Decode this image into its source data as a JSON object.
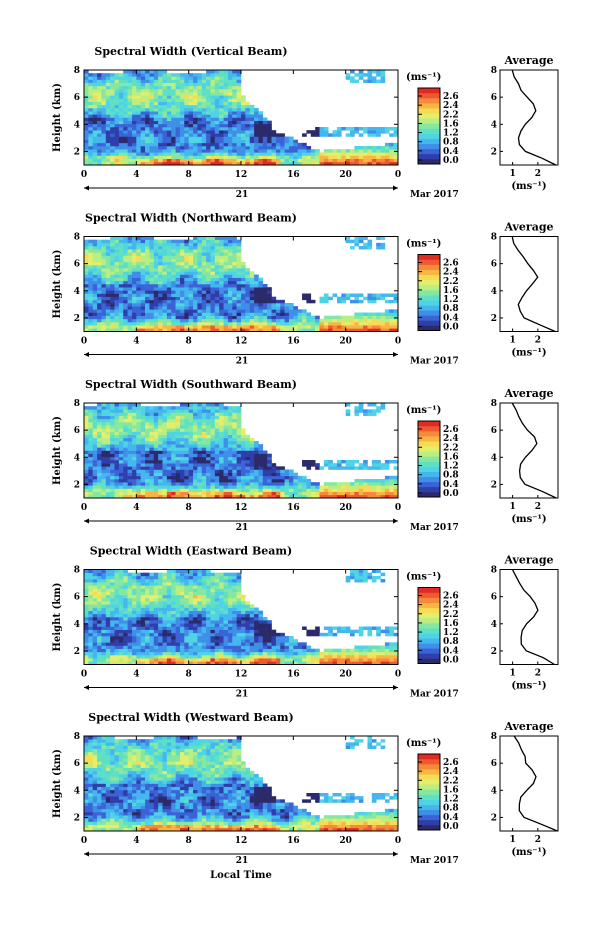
{
  "figure": {
    "bottom_xlabel": "Local Time",
    "date_day": "21",
    "date_month": "Mar 2017"
  },
  "colorscale": {
    "unit": "(ms⁻¹)",
    "ticks": [
      "2.6",
      "2.4",
      "2.2",
      "1.6",
      "1.2",
      "0.8",
      "0.4",
      "0.0"
    ],
    "colors": [
      "#2b2b6b",
      "#2f3ea8",
      "#3a63d6",
      "#3f8fe8",
      "#45b7ef",
      "#4fd4e6",
      "#5fe0c4",
      "#86e8a0",
      "#b8ee82",
      "#e2ee6c",
      "#f6dc55",
      "#f8b544",
      "#f58a3a",
      "#ee5a30",
      "#e22a22"
    ]
  },
  "chart_data": [
    {
      "type": "heatmap",
      "title": "Spectral Width (Vertical Beam)",
      "ylabel": "Height (km)",
      "xlim": [
        0,
        24
      ],
      "ylim": [
        1,
        8
      ],
      "x_ticks": [
        "0",
        "4",
        "8",
        "12",
        "16",
        "20",
        "0"
      ],
      "y_ticks": [
        "2",
        "4",
        "6",
        "8"
      ],
      "value_unit": "ms⁻¹",
      "clim": [
        0.0,
        2.8
      ],
      "average_profile": {
        "title": "Average",
        "xlabel": "(ms⁻¹)",
        "x_ticks": [
          "1",
          "2"
        ],
        "y_ticks": [
          "2",
          "4",
          "6",
          "8"
        ],
        "xlim": [
          0.5,
          2.8
        ],
        "ylim": [
          1,
          8
        ],
        "height_km": [
          1.0,
          1.5,
          2.0,
          2.5,
          3.0,
          3.5,
          4.0,
          4.5,
          5.0,
          5.5,
          6.0,
          6.5,
          7.0,
          7.5,
          8.0
        ],
        "width_ms": [
          2.75,
          2.2,
          1.5,
          1.3,
          1.22,
          1.3,
          1.5,
          1.75,
          1.95,
          1.8,
          1.55,
          1.35,
          1.2,
          1.1,
          1.0
        ]
      }
    },
    {
      "type": "heatmap",
      "title": "Spectral Width (Northward Beam)",
      "ylabel": "Height (km)",
      "xlim": [
        0,
        24
      ],
      "ylim": [
        1,
        8
      ],
      "x_ticks": [
        "0",
        "4",
        "8",
        "12",
        "16",
        "20",
        "0"
      ],
      "y_ticks": [
        "2",
        "4",
        "6",
        "8"
      ],
      "value_unit": "ms⁻¹",
      "clim": [
        0.0,
        2.8
      ],
      "average_profile": {
        "title": "Average",
        "xlabel": "(ms⁻¹)",
        "x_ticks": [
          "1",
          "2"
        ],
        "y_ticks": [
          "2",
          "4",
          "6",
          "8"
        ],
        "xlim": [
          0.5,
          2.8
        ],
        "ylim": [
          1,
          8
        ],
        "height_km": [
          1.0,
          1.5,
          2.0,
          2.5,
          3.0,
          3.5,
          4.0,
          4.5,
          5.0,
          5.5,
          6.0,
          6.5,
          7.0,
          7.5,
          8.0
        ],
        "width_ms": [
          2.7,
          2.1,
          1.45,
          1.28,
          1.25,
          1.35,
          1.55,
          1.8,
          2.0,
          1.85,
          1.6,
          1.4,
          1.2,
          1.05,
          0.95
        ]
      }
    },
    {
      "type": "heatmap",
      "title": "Spectral Width (Southward Beam)",
      "ylabel": "Height (km)",
      "xlim": [
        0,
        24
      ],
      "ylim": [
        1,
        8
      ],
      "x_ticks": [
        "0",
        "4",
        "8",
        "12",
        "16",
        "20",
        "0"
      ],
      "y_ticks": [
        "2",
        "4",
        "6",
        "8"
      ],
      "value_unit": "ms⁻¹",
      "clim": [
        0.0,
        2.8
      ],
      "average_profile": {
        "title": "Average",
        "xlabel": "(ms⁻¹)",
        "x_ticks": [
          "1",
          "2"
        ],
        "y_ticks": [
          "2",
          "4",
          "6",
          "8"
        ],
        "xlim": [
          0.5,
          2.8
        ],
        "ylim": [
          1,
          8
        ],
        "height_km": [
          1.0,
          1.5,
          2.0,
          2.5,
          3.0,
          3.5,
          4.0,
          4.5,
          5.0,
          5.5,
          6.0,
          6.5,
          7.0,
          7.5,
          8.0
        ],
        "width_ms": [
          2.75,
          2.15,
          1.5,
          1.3,
          1.25,
          1.32,
          1.5,
          1.75,
          1.95,
          1.85,
          1.6,
          1.4,
          1.25,
          1.1,
          1.0
        ]
      }
    },
    {
      "type": "heatmap",
      "title": "Spectral Width (Eastward Beam)",
      "ylabel": "Height (km)",
      "xlim": [
        0,
        24
      ],
      "ylim": [
        1,
        8
      ],
      "x_ticks": [
        "0",
        "4",
        "8",
        "12",
        "16",
        "20",
        "0"
      ],
      "y_ticks": [
        "2",
        "4",
        "6",
        "8"
      ],
      "value_unit": "ms⁻¹",
      "clim": [
        0.0,
        2.8
      ],
      "average_profile": {
        "title": "Average",
        "xlabel": "(ms⁻¹)",
        "x_ticks": [
          "1",
          "2"
        ],
        "y_ticks": [
          "2",
          "4",
          "6",
          "8"
        ],
        "xlim": [
          0.5,
          2.8
        ],
        "ylim": [
          1,
          8
        ],
        "height_km": [
          1.0,
          1.5,
          2.0,
          2.5,
          3.0,
          3.5,
          4.0,
          4.5,
          5.0,
          5.5,
          6.0,
          6.5,
          7.0,
          7.5,
          8.0
        ],
        "width_ms": [
          2.7,
          2.2,
          1.55,
          1.35,
          1.3,
          1.35,
          1.55,
          1.8,
          2.0,
          1.9,
          1.7,
          1.45,
          1.25,
          1.1,
          1.0
        ]
      }
    },
    {
      "type": "heatmap",
      "title": "Spectral Width (Westward Beam)",
      "ylabel": "Height (km)",
      "xlim": [
        0,
        24
      ],
      "ylim": [
        1,
        8
      ],
      "x_ticks": [
        "0",
        "4",
        "8",
        "12",
        "16",
        "20",
        "0"
      ],
      "y_ticks": [
        "2",
        "4",
        "6",
        "8"
      ],
      "value_unit": "ms⁻¹",
      "clim": [
        0.0,
        2.8
      ],
      "average_profile": {
        "title": "Average",
        "xlabel": "(ms⁻¹)",
        "x_ticks": [
          "1",
          "2"
        ],
        "y_ticks": [
          "2",
          "4",
          "6",
          "8"
        ],
        "xlim": [
          0.5,
          2.8
        ],
        "ylim": [
          1,
          8
        ],
        "height_km": [
          1.0,
          1.5,
          2.0,
          2.5,
          3.0,
          3.5,
          4.0,
          4.5,
          5.0,
          5.5,
          6.0,
          6.5,
          7.0,
          7.5,
          8.0
        ],
        "width_ms": [
          2.75,
          2.1,
          1.45,
          1.3,
          1.25,
          1.35,
          1.55,
          1.8,
          1.9,
          1.75,
          1.55,
          1.5,
          1.35,
          1.2,
          1.1
        ]
      }
    }
  ]
}
